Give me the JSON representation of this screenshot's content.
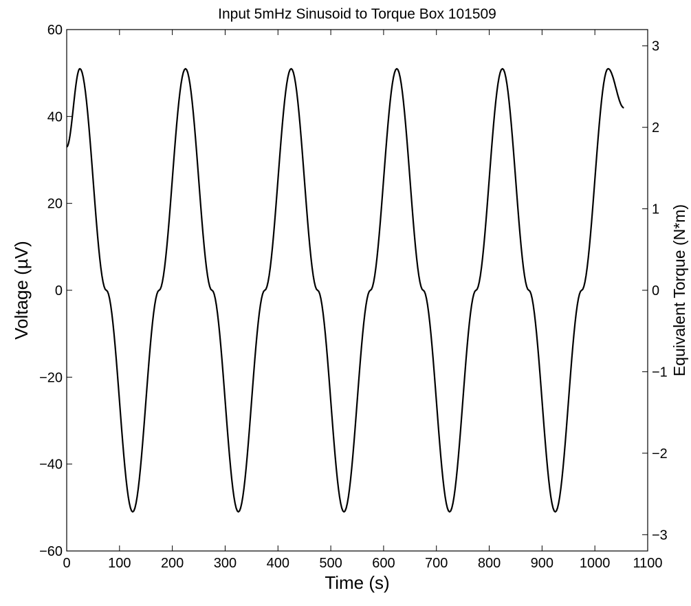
{
  "chart_data": {
    "type": "line",
    "title": "Input 5mHz Sinusoid to Torque Box 101509",
    "xlabel": "Time (s)",
    "ylabel": "Voltage (µV)",
    "y2label": "Equivalent Torque (N*m)",
    "xlim": [
      0,
      1100
    ],
    "ylim": [
      -60,
      60
    ],
    "y2lim": [
      -3.2,
      3.2
    ],
    "x_ticks": [
      "0",
      "100",
      "200",
      "300",
      "400",
      "500",
      "600",
      "700",
      "800",
      "900",
      "1000",
      "1100"
    ],
    "y_ticks": [
      "−60",
      "−40",
      "−20",
      "0",
      "20",
      "40",
      "60"
    ],
    "y2_ticks": [
      "−3",
      "−2",
      "−1",
      "0",
      "1",
      "2",
      "3"
    ],
    "grid": false,
    "line_color": "#000000",
    "series": [
      {
        "x": [
          0,
          25,
          75,
          125,
          175,
          225,
          275,
          325,
          375,
          425,
          475,
          525,
          575,
          625,
          675,
          725,
          775,
          825,
          875,
          925,
          975,
          1025,
          1055
        ],
        "values": [
          33,
          51,
          0,
          -51,
          0,
          51,
          0,
          -51,
          0,
          51,
          0,
          -51,
          0,
          51,
          0,
          -51,
          0,
          51,
          0,
          -51,
          0,
          51,
          42
        ]
      }
    ]
  }
}
